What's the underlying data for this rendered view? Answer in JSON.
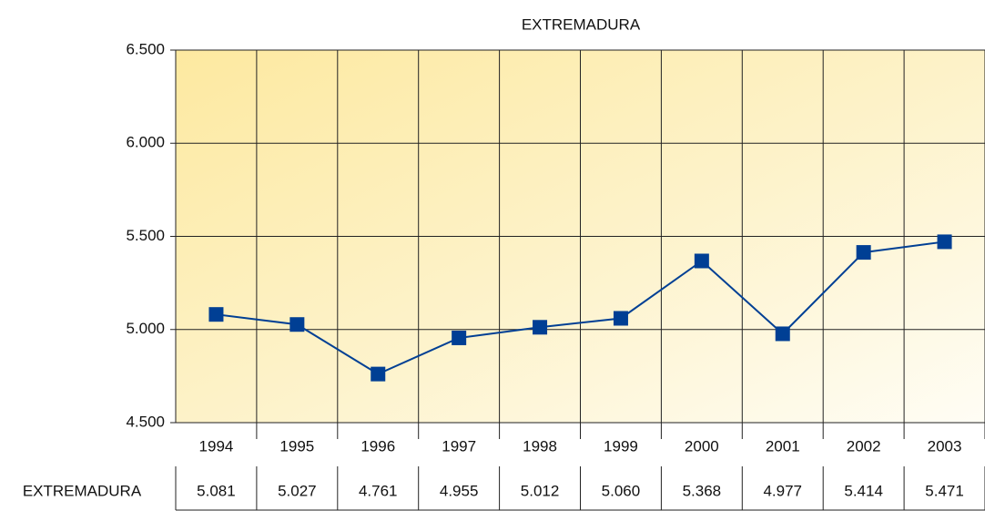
{
  "chart_data": {
    "type": "line",
    "title": "EXTREMADURA",
    "categories": [
      "1994",
      "1995",
      "1996",
      "1997",
      "1998",
      "1999",
      "2000",
      "2001",
      "2002",
      "2003"
    ],
    "series": [
      {
        "name": "EXTREMADURA",
        "color": "#003f94",
        "values": [
          5081,
          5027,
          4761,
          4955,
          5012,
          5060,
          5368,
          4977,
          5414,
          5471
        ],
        "value_labels": [
          "5.081",
          "5.027",
          "4.761",
          "4.955",
          "5.012",
          "5.060",
          "5.368",
          "4.977",
          "5.414",
          "5.471"
        ]
      }
    ],
    "ylim": [
      4500,
      6500
    ],
    "yticks": [
      {
        "value": 4500,
        "label": "4.500"
      },
      {
        "value": 5000,
        "label": "5.000"
      },
      {
        "value": 5500,
        "label": "5.500"
      },
      {
        "value": 6000,
        "label": "6.000"
      },
      {
        "value": 6500,
        "label": "6.500"
      }
    ],
    "grid": true
  }
}
